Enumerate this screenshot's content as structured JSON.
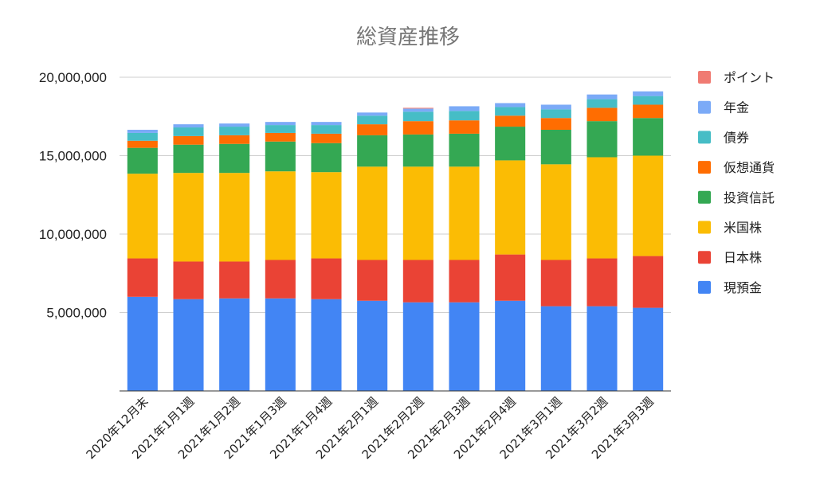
{
  "chart_data": {
    "type": "bar",
    "stacked": true,
    "title": "総資産推移",
    "categories": [
      "2020年12月末",
      "2021年1月1週",
      "2021年1月2週",
      "2021年1月3週",
      "2021年1月4週",
      "2021年2月1週",
      "2021年2月2週",
      "2021年2月3週",
      "2021年2月4週",
      "2021年3月1週",
      "2021年3月2週",
      "2021年3月3週"
    ],
    "series": [
      {
        "name": "現預金",
        "color": "#4285F4",
        "values": [
          6000000,
          5850000,
          5900000,
          5900000,
          5850000,
          5750000,
          5650000,
          5650000,
          5750000,
          5400000,
          5400000,
          5300000
        ]
      },
      {
        "name": "日本株",
        "color": "#EA4335",
        "values": [
          2450000,
          2400000,
          2350000,
          2450000,
          2600000,
          2600000,
          2700000,
          2700000,
          2950000,
          2950000,
          3050000,
          3300000
        ]
      },
      {
        "name": "米国株",
        "color": "#FBBC04",
        "values": [
          5400000,
          5650000,
          5650000,
          5650000,
          5500000,
          5950000,
          5950000,
          5950000,
          6000000,
          6100000,
          6450000,
          6400000
        ]
      },
      {
        "name": "投資信託",
        "color": "#34A853",
        "values": [
          1650000,
          1800000,
          1850000,
          1900000,
          1850000,
          2000000,
          2050000,
          2100000,
          2150000,
          2200000,
          2300000,
          2400000
        ]
      },
      {
        "name": "仮想通貨",
        "color": "#FF6D01",
        "values": [
          450000,
          550000,
          550000,
          550000,
          600000,
          700000,
          850000,
          850000,
          700000,
          750000,
          850000,
          850000
        ]
      },
      {
        "name": "債券",
        "color": "#46BDC6",
        "values": [
          500000,
          550000,
          550000,
          500000,
          550000,
          550000,
          600000,
          600000,
          550000,
          550000,
          550000,
          550000
        ]
      },
      {
        "name": "年金",
        "color": "#7BAAF7",
        "values": [
          200000,
          200000,
          200000,
          200000,
          200000,
          200000,
          200000,
          300000,
          250000,
          300000,
          300000,
          300000
        ]
      },
      {
        "name": "ポイント",
        "color": "#F07B72",
        "values": [
          0,
          0,
          0,
          0,
          0,
          0,
          50000,
          0,
          0,
          0,
          0,
          0
        ]
      }
    ],
    "legend_order": [
      "ポイント",
      "年金",
      "債券",
      "仮想通貨",
      "投資信託",
      "米国株",
      "日本株",
      "現預金"
    ],
    "y_ticks": [
      "5,000,000",
      "10,000,000",
      "15,000,000",
      "20,000,000"
    ],
    "ylim": [
      0,
      20000000
    ],
    "grid": true,
    "legend_position": "right"
  }
}
